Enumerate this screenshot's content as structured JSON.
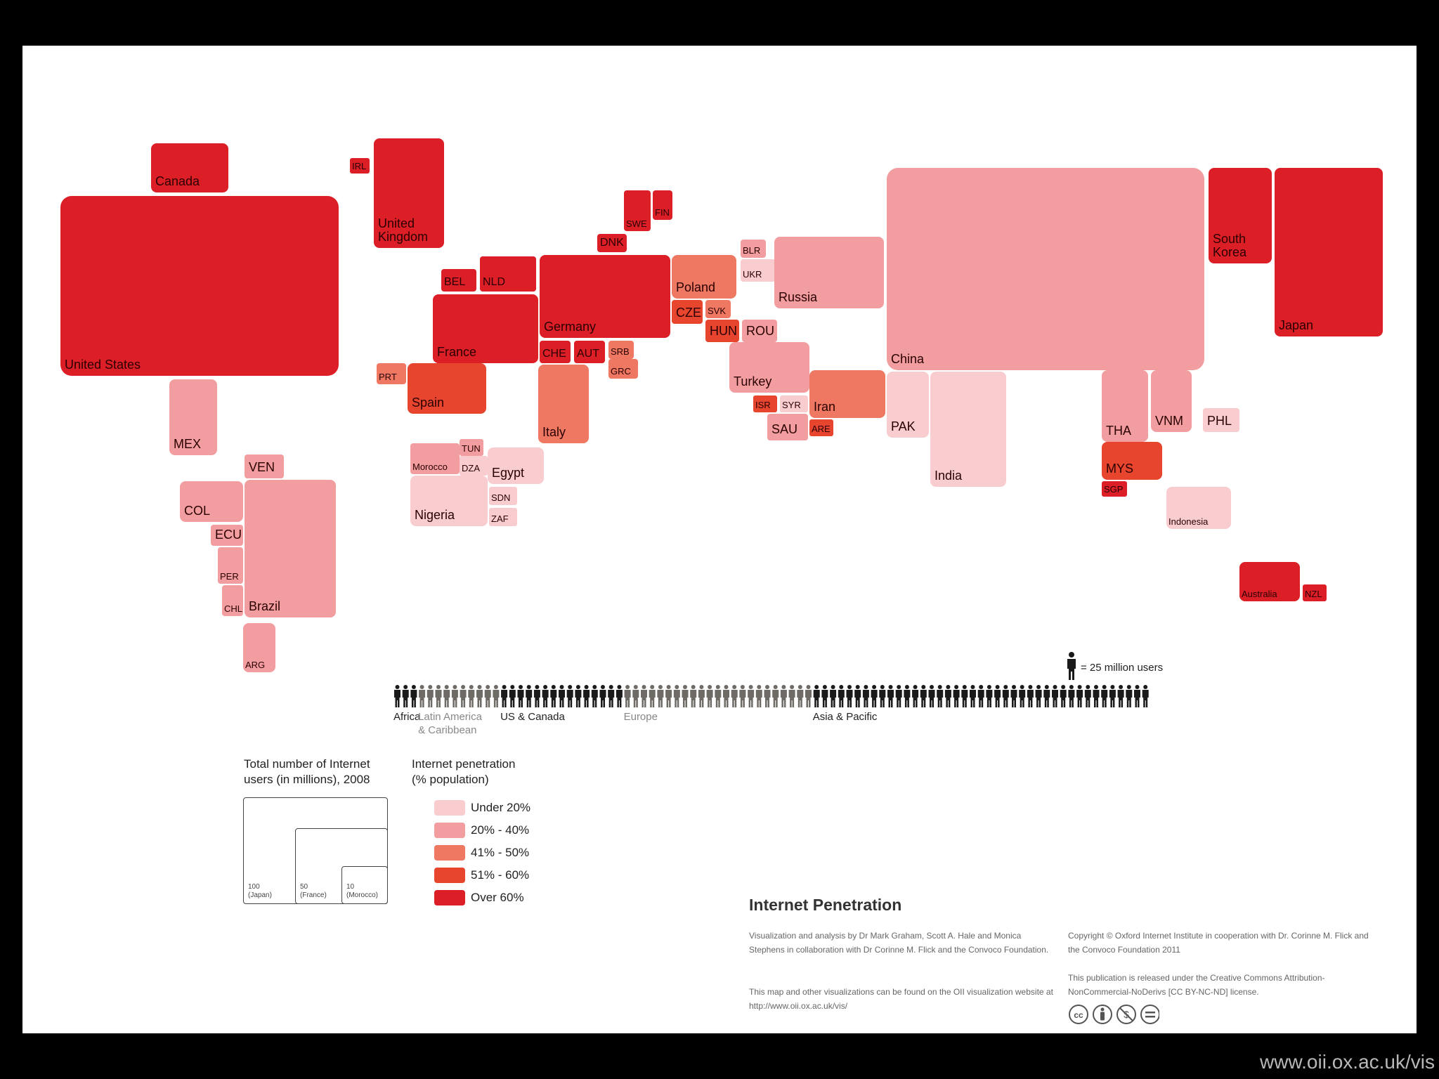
{
  "map": {
    "title": "Internet Penetration",
    "countries": [
      {
        "name": "Canada",
        "category": 5
      },
      {
        "name": "IRL",
        "category": 5
      },
      {
        "name": "United\nKingdom",
        "category": 5
      },
      {
        "name": "United States",
        "category": 5
      },
      {
        "name": "MEX",
        "category": 2
      },
      {
        "name": "SWE",
        "category": 5
      },
      {
        "name": "FIN",
        "category": 5
      },
      {
        "name": "DNK",
        "category": 5
      },
      {
        "name": "BEL",
        "category": 5
      },
      {
        "name": "NLD",
        "category": 5
      },
      {
        "name": "Germany",
        "category": 5
      },
      {
        "name": "France",
        "category": 5
      },
      {
        "name": "CHE",
        "category": 5
      },
      {
        "name": "AUT",
        "category": 5
      },
      {
        "name": "SRB",
        "category": 3
      },
      {
        "name": "GRC",
        "category": 3
      },
      {
        "name": "PRT",
        "category": 3
      },
      {
        "name": "Spain",
        "category": 4
      },
      {
        "name": "Italy",
        "category": 3
      },
      {
        "name": "Poland",
        "category": 3
      },
      {
        "name": "CZE",
        "category": 4
      },
      {
        "name": "SVK",
        "category": 3
      },
      {
        "name": "HUN",
        "category": 4
      },
      {
        "name": "ROU",
        "category": 2
      },
      {
        "name": "BLR",
        "category": 2
      },
      {
        "name": "UKR",
        "category": 1
      },
      {
        "name": "Russia",
        "category": 2
      },
      {
        "name": "Turkey",
        "category": 2
      },
      {
        "name": "ISR",
        "category": 4
      },
      {
        "name": "SYR",
        "category": 1
      },
      {
        "name": "SAU",
        "category": 2
      },
      {
        "name": "ARE",
        "category": 4
      },
      {
        "name": "Iran",
        "category": 3
      },
      {
        "name": "China",
        "category": 2
      },
      {
        "name": "PAK",
        "category": 1
      },
      {
        "name": "India",
        "category": 1
      },
      {
        "name": "South\nKorea",
        "category": 5
      },
      {
        "name": "Japan",
        "category": 5
      },
      {
        "name": "THA",
        "category": 2
      },
      {
        "name": "VNM",
        "category": 2
      },
      {
        "name": "PHL",
        "category": 1
      },
      {
        "name": "MYS",
        "category": 4
      },
      {
        "name": "SGP",
        "category": 5
      },
      {
        "name": "Indonesia",
        "category": 1
      },
      {
        "name": "Australia",
        "category": 5
      },
      {
        "name": "NZL",
        "category": 5
      },
      {
        "name": "Morocco",
        "category": 2
      },
      {
        "name": "TUN",
        "category": 2
      },
      {
        "name": "DZA",
        "category": 1
      },
      {
        "name": "Egypt",
        "category": 1
      },
      {
        "name": "Nigeria",
        "category": 1
      },
      {
        "name": "SDN",
        "category": 1
      },
      {
        "name": "ZAF",
        "category": 1
      },
      {
        "name": "VEN",
        "category": 2
      },
      {
        "name": "COL",
        "category": 2
      },
      {
        "name": "ECU",
        "category": 2
      },
      {
        "name": "PER",
        "category": 2
      },
      {
        "name": "CHL",
        "category": 2
      },
      {
        "name": "Brazil",
        "category": 2
      },
      {
        "name": "ARG",
        "category": 2
      }
    ]
  },
  "users_bar": {
    "scale_label": "= 25 million users",
    "regions": [
      {
        "name": "Africa",
        "icons": 3,
        "color": "#1a1a1a"
      },
      {
        "name": "Latin America\n& Caribbean",
        "icons": 10,
        "color": "#6e6a66"
      },
      {
        "name": "US & Canada",
        "icons": 15,
        "color": "#1a1a1a"
      },
      {
        "name": "Europe",
        "icons": 23,
        "color": "#6e6a66"
      },
      {
        "name": "Asia & Pacific",
        "icons": 41,
        "color": "#1a1a1a"
      }
    ]
  },
  "legend": {
    "size_title": "Total number of Internet\nusers (in millions), 2008",
    "size_examples": [
      {
        "label": "100\n(Japan)"
      },
      {
        "label": "50\n(France)"
      },
      {
        "label": "10\n(Morocco)"
      }
    ],
    "penetration_title": "Internet penetration\n(% population)",
    "categories": [
      {
        "label": "Under 20%",
        "color": "#f9cdd0"
      },
      {
        "label": "20% - 40%",
        "color": "#f29ea0"
      },
      {
        "label": "41% - 50%",
        "color": "#ee7862"
      },
      {
        "label": "51% - 60%",
        "color": "#e8452e"
      },
      {
        "label": "Over 60%",
        "color": "#dc1f26"
      }
    ]
  },
  "credits": {
    "col1_p1": "Visualization and analysis by Dr Mark Graham, Scott A. Hale and Monica Stephens in collaboration with Dr Corinne M. Flick and the Convoco Foundation.",
    "col1_p2": "This map and other visualizations can be found on the OII visualization website at http://www.oii.ox.ac.uk/vis/",
    "col2_p1": "Copyright © Oxford Internet Institute in cooperation with Dr. Corinne M. Flick and the Convoco Foundation 2011",
    "col2_p2": "This publication is released under the Creative Commons Attribution-NonCommercial-NoDerivs [CC BY-NC-ND] license.",
    "cc_icons": [
      "cc-icon",
      "attribution-icon",
      "noncommercial-icon",
      "noderivs-icon"
    ]
  },
  "footer_url": "www.oii.ox.ac.uk/vis"
}
